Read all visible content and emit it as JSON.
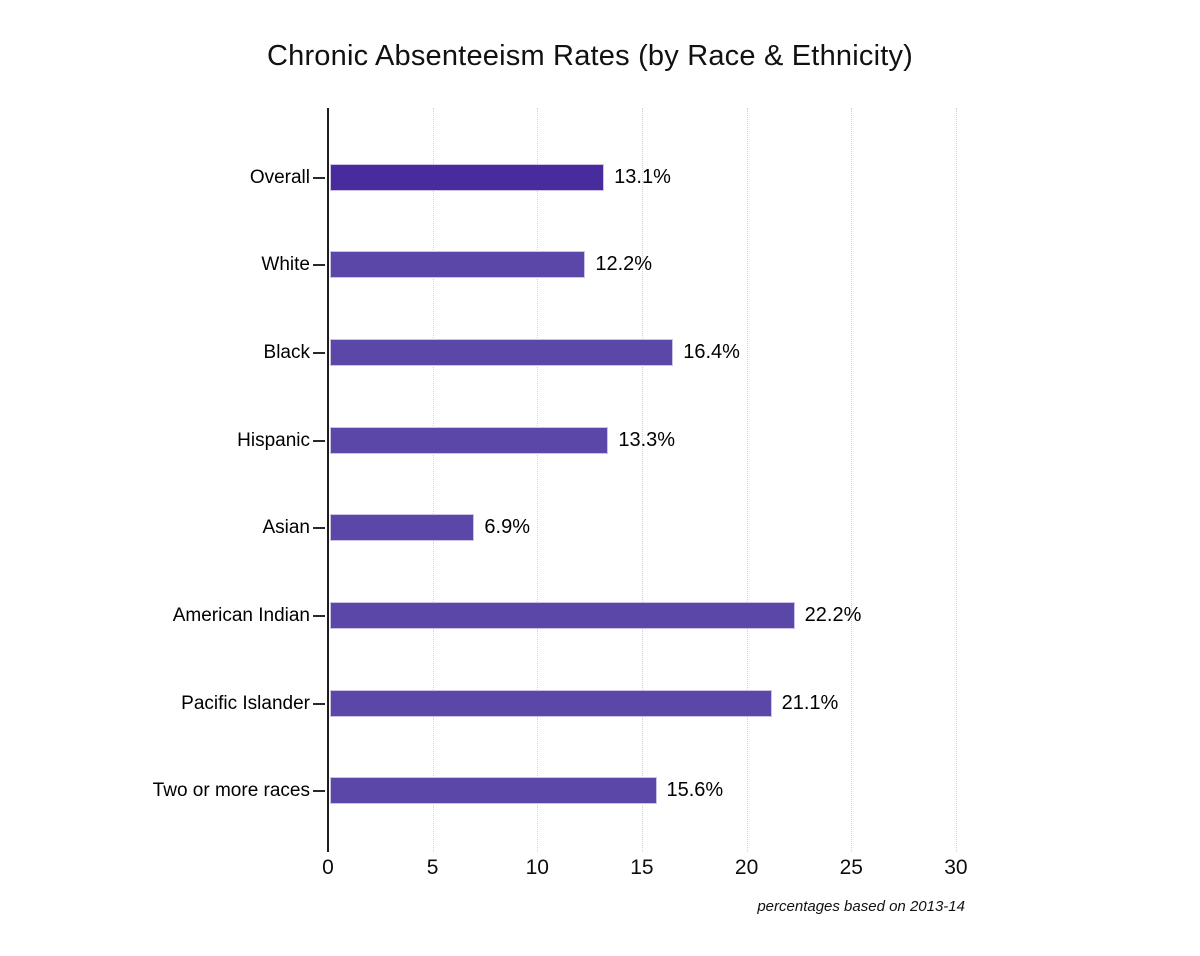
{
  "title": "Chronic Absenteeism Rates (by Race & Ethnicity)",
  "footnote": "percentages based on 2013-14",
  "chart_data": {
    "type": "bar",
    "orientation": "horizontal",
    "title": "Chronic Absenteeism Rates (by Race & Ethnicity)",
    "xlabel": "",
    "ylabel": "",
    "categories": [
      "Overall",
      "White",
      "Black",
      "Hispanic",
      "Asian",
      "American Indian",
      "Pacific Islander",
      "Two or more races"
    ],
    "values": [
      13.1,
      12.2,
      16.4,
      13.3,
      6.9,
      22.2,
      21.1,
      15.6
    ],
    "value_labels": [
      "13.1%",
      "12.2%",
      "16.4%",
      "13.3%",
      "6.9%",
      "22.2%",
      "21.1%",
      "15.6%"
    ],
    "bar_colors": [
      "#482b9d",
      "#5a47a7",
      "#5a47a7",
      "#5a47a7",
      "#5a47a7",
      "#5a47a7",
      "#5a47a7",
      "#5a47a7"
    ],
    "x_ticks": [
      0,
      5,
      10,
      15,
      20,
      25,
      30
    ],
    "xlim": [
      0,
      35
    ],
    "grid": "vertical-dotted",
    "legend": "none",
    "annotation": "percentages based on 2013-14",
    "colors": {
      "overall_bar": "#482b9d",
      "bar": "#5a47a7",
      "grid": "#d2d2d2",
      "axis": "#1c1c1c",
      "text": "#000000"
    }
  }
}
